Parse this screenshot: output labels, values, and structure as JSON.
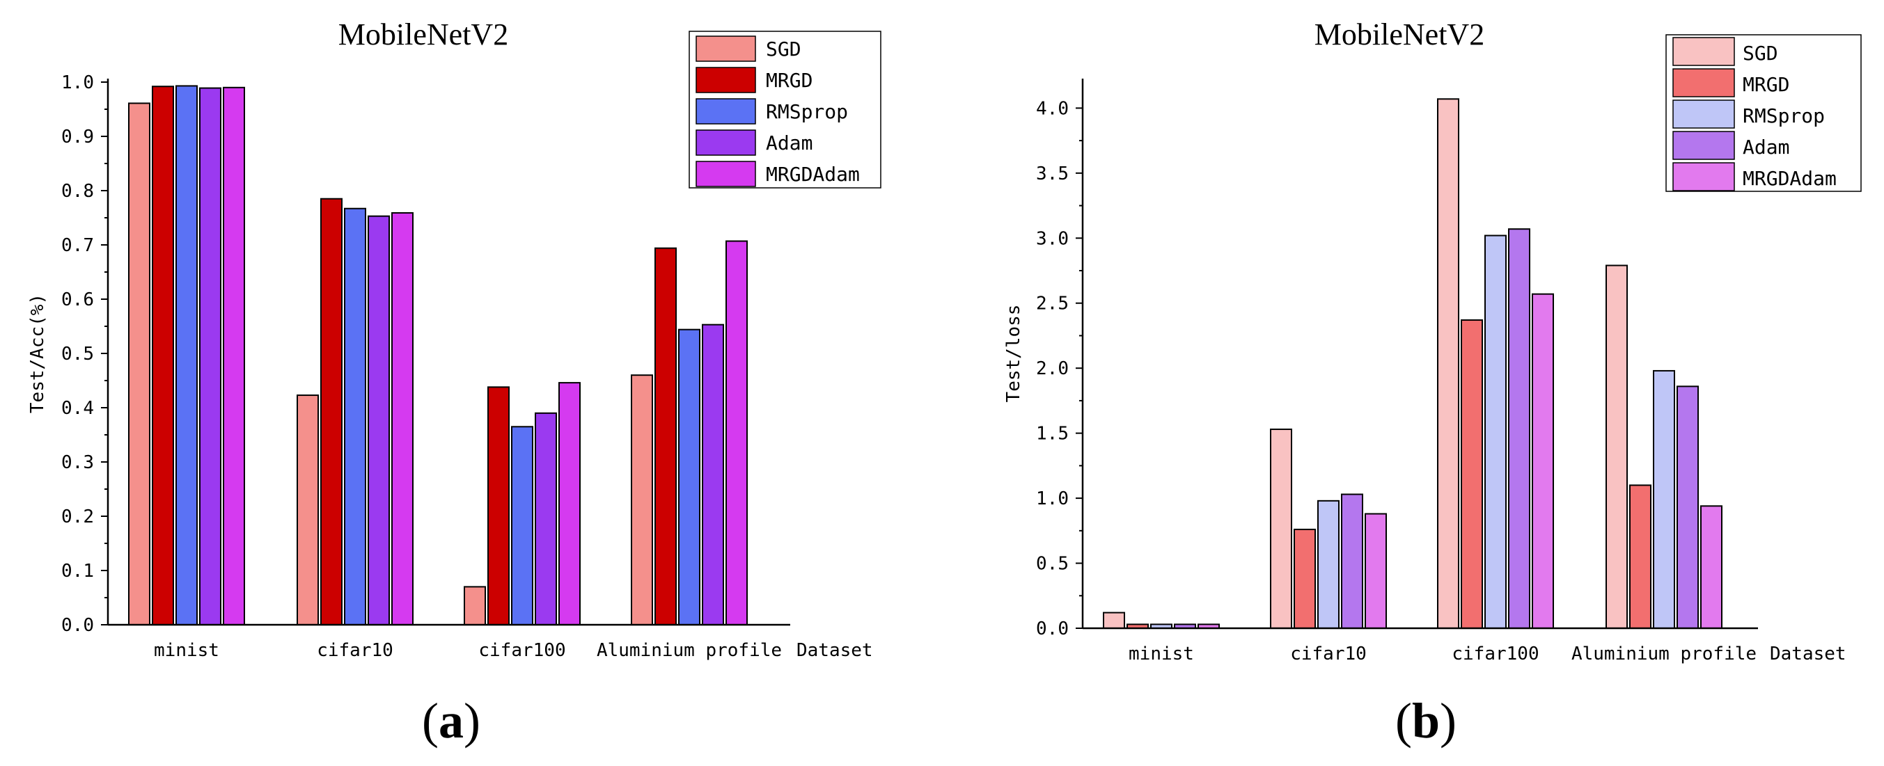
{
  "chart_data": [
    {
      "type": "bar",
      "panel": "a",
      "title": "MobileNetV2",
      "xlabel": "Dataset",
      "ylabel": "Test/Acc(%)",
      "ylim": [
        0,
        1.0
      ],
      "yticks": [
        "0.0",
        "0.1",
        "0.2",
        "0.3",
        "0.4",
        "0.5",
        "0.6",
        "0.7",
        "0.8",
        "0.9",
        "1.0"
      ],
      "yticks_values": [
        0,
        0.1,
        0.2,
        0.3,
        0.4,
        0.5,
        0.6,
        0.7,
        0.8,
        0.9,
        1.0
      ],
      "categories": [
        "minist",
        "cifar10",
        "cifar100",
        "Aluminium profile"
      ],
      "legend_position": "top-right",
      "series": [
        {
          "name": "SGD",
          "color": "#F4908C",
          "values": [
            0.961,
            0.423,
            0.07,
            0.46
          ]
        },
        {
          "name": "MRGD",
          "color": "#CC0000",
          "values": [
            0.992,
            0.785,
            0.438,
            0.694
          ]
        },
        {
          "name": "RMSprop",
          "color": "#5B72F4",
          "values": [
            0.993,
            0.767,
            0.365,
            0.544
          ]
        },
        {
          "name": "Adam",
          "color": "#9B3AF0",
          "values": [
            0.989,
            0.753,
            0.39,
            0.553
          ]
        },
        {
          "name": "MRGDAdam",
          "color": "#D53AF0",
          "values": [
            0.99,
            0.759,
            0.446,
            0.707
          ]
        }
      ]
    },
    {
      "type": "bar",
      "panel": "b",
      "title": "MobileNetV2",
      "xlabel": "Dataset",
      "ylabel": "Test/loss",
      "ylim": [
        0,
        4.2
      ],
      "yticks": [
        "0.0",
        "0.5",
        "1.0",
        "1.5",
        "2.0",
        "2.5",
        "3.0",
        "3.5",
        "4.0"
      ],
      "yticks_values": [
        0,
        0.5,
        1.0,
        1.5,
        2.0,
        2.5,
        3.0,
        3.5,
        4.0
      ],
      "categories": [
        "minist",
        "cifar10",
        "cifar100",
        "Aluminium profile"
      ],
      "legend_position": "top-right",
      "series": [
        {
          "name": "SGD",
          "color": "#F9C2C2",
          "values": [
            0.12,
            1.53,
            4.07,
            2.79
          ]
        },
        {
          "name": "MRGD",
          "color": "#F26F6F",
          "values": [
            0.03,
            0.76,
            2.37,
            1.1
          ]
        },
        {
          "name": "RMSprop",
          "color": "#BFC6F7",
          "values": [
            0.03,
            0.98,
            3.02,
            1.98
          ]
        },
        {
          "name": "Adam",
          "color": "#B477EE",
          "values": [
            0.03,
            1.03,
            3.07,
            1.86
          ]
        },
        {
          "name": "MRGDAdam",
          "color": "#E27AEE",
          "values": [
            0.03,
            0.88,
            2.57,
            0.94
          ]
        }
      ]
    }
  ],
  "panel_labels": [
    "a",
    "b"
  ]
}
